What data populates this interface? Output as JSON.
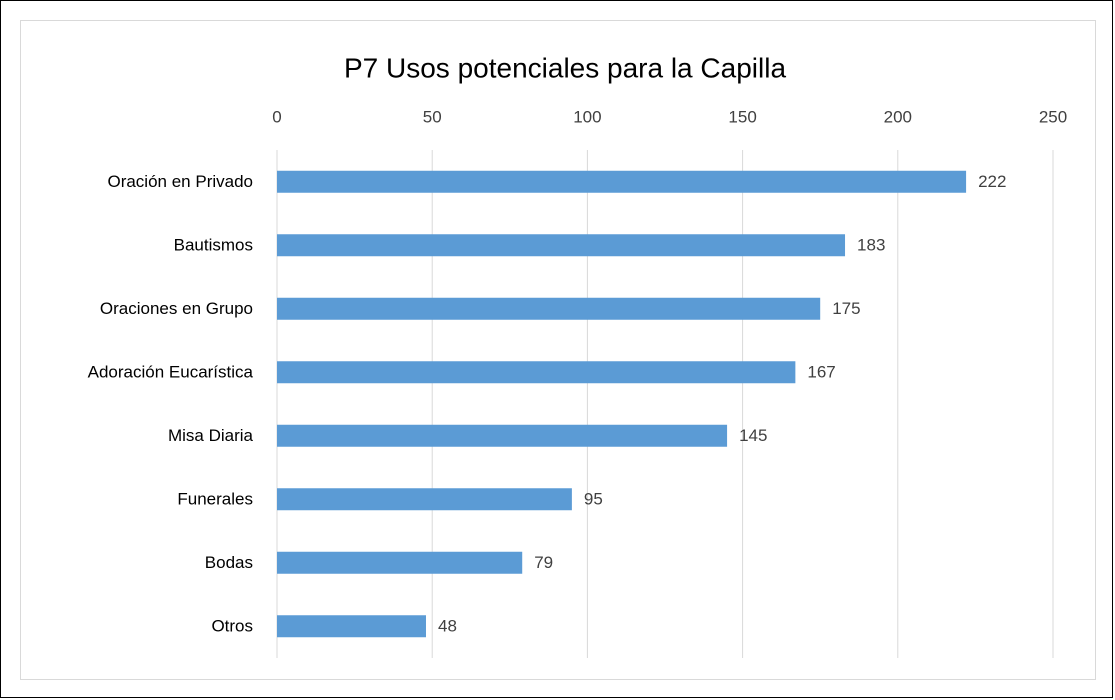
{
  "chart_data": {
    "type": "bar",
    "orientation": "horizontal",
    "title": "P7 Usos potenciales para la Capilla",
    "categories": [
      "Oración en Privado",
      "Bautismos",
      "Oraciones en Grupo",
      "Adoración Eucarística",
      "Misa Diaria",
      "Funerales",
      "Bodas",
      "Otros"
    ],
    "values": [
      222,
      183,
      175,
      167,
      145,
      95,
      79,
      48
    ],
    "color": "#5b9bd5",
    "xlim": [
      0,
      250
    ],
    "xticks": [
      0,
      50,
      100,
      150,
      200,
      250
    ],
    "grid": true
  }
}
